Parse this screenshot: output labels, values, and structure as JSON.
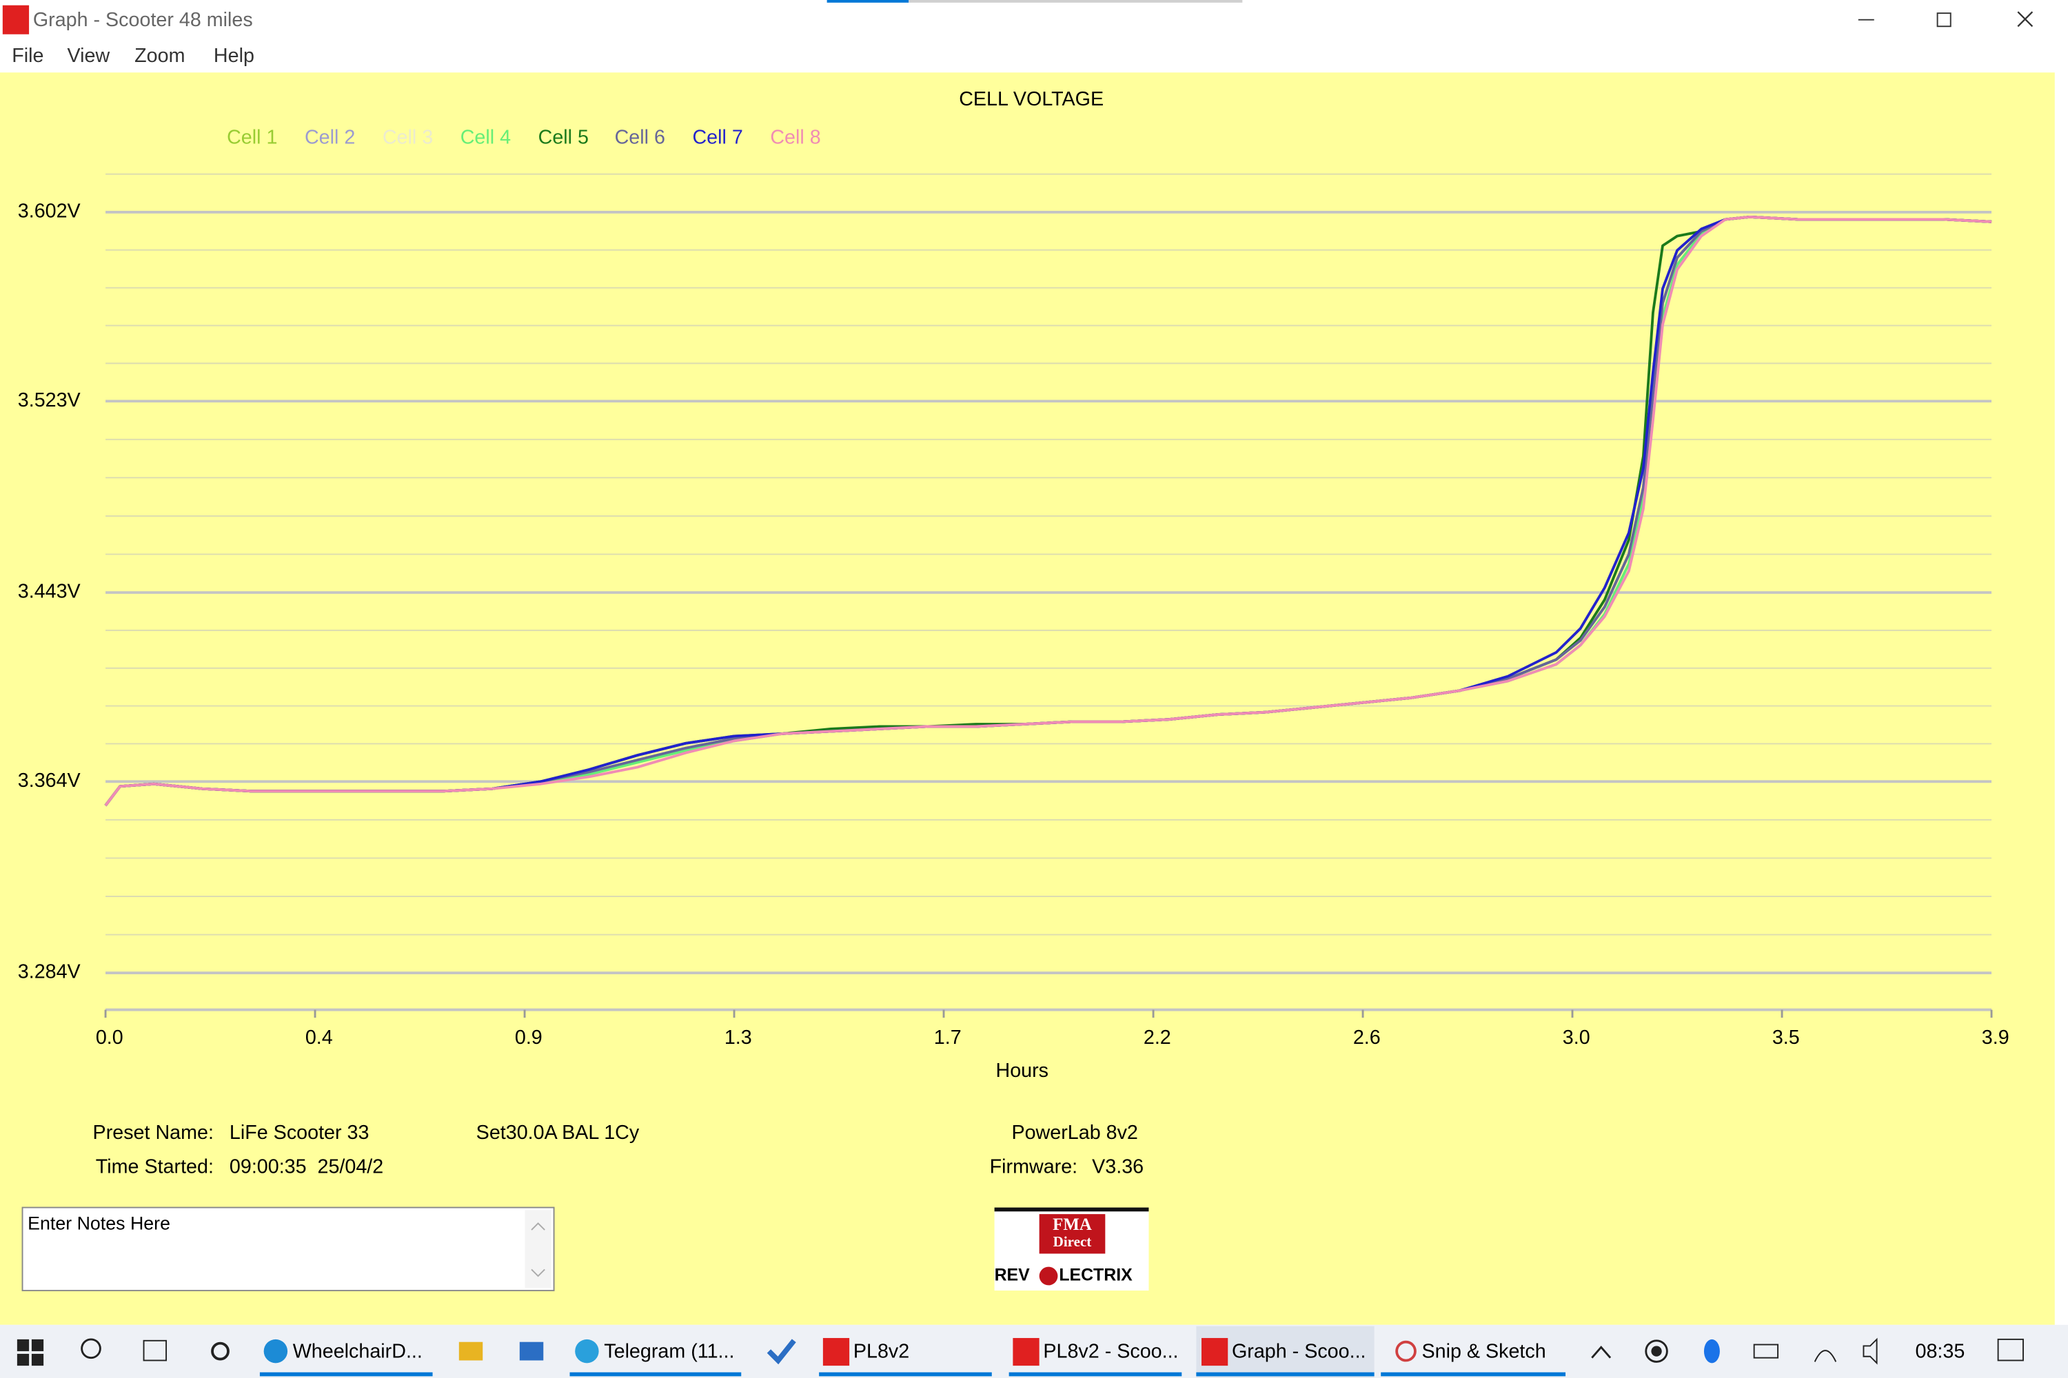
{
  "window": {
    "title": "Graph - Scooter 48 miles",
    "menu": [
      "File",
      "View",
      "Zoom",
      "Help"
    ]
  },
  "chart_data": {
    "type": "line",
    "title": "CELL VOLTAGE",
    "x_label": "Hours",
    "x": [
      0,
      0.03,
      0.1,
      0.2,
      0.3,
      0.4,
      0.5,
      0.6,
      0.7,
      0.8,
      0.9,
      1.0,
      1.1,
      1.2,
      1.3,
      1.4,
      1.5,
      1.6,
      1.7,
      1.8,
      1.9,
      2.0,
      2.1,
      2.2,
      2.3,
      2.4,
      2.5,
      2.6,
      2.7,
      2.8,
      2.9,
      3.0,
      3.05,
      3.1,
      3.15,
      3.18,
      3.2,
      3.22,
      3.25,
      3.3,
      3.35,
      3.4,
      3.5,
      3.6,
      3.7,
      3.8,
      3.9
    ],
    "series": [
      {
        "name": "Cell 1",
        "color": "#99cc33",
        "values": [
          3.354,
          3.362,
          3.363,
          3.361,
          3.36,
          3.36,
          3.36,
          3.36,
          3.36,
          3.361,
          3.364,
          3.368,
          3.373,
          3.378,
          3.382,
          3.384,
          3.385,
          3.386,
          3.387,
          3.387,
          3.388,
          3.389,
          3.389,
          3.39,
          3.392,
          3.393,
          3.395,
          3.397,
          3.399,
          3.402,
          3.407,
          3.415,
          3.423,
          3.437,
          3.459,
          3.487,
          3.526,
          3.564,
          3.583,
          3.594,
          3.599,
          3.6,
          3.599,
          3.599,
          3.599,
          3.599,
          3.598
        ]
      },
      {
        "name": "Cell 2",
        "color": "#9b9bd0",
        "values": [
          3.354,
          3.362,
          3.363,
          3.361,
          3.36,
          3.36,
          3.36,
          3.36,
          3.36,
          3.361,
          3.364,
          3.368,
          3.373,
          3.378,
          3.382,
          3.384,
          3.385,
          3.386,
          3.387,
          3.387,
          3.388,
          3.389,
          3.389,
          3.39,
          3.392,
          3.393,
          3.395,
          3.397,
          3.399,
          3.402,
          3.407,
          3.415,
          3.423,
          3.437,
          3.459,
          3.487,
          3.526,
          3.564,
          3.583,
          3.594,
          3.599,
          3.6,
          3.599,
          3.599,
          3.599,
          3.599,
          3.598
        ]
      },
      {
        "name": "Cell 3",
        "color": "#ecebd0",
        "values": [
          3.354,
          3.362,
          3.363,
          3.361,
          3.36,
          3.36,
          3.36,
          3.36,
          3.36,
          3.361,
          3.364,
          3.368,
          3.373,
          3.378,
          3.382,
          3.384,
          3.385,
          3.386,
          3.387,
          3.387,
          3.388,
          3.389,
          3.389,
          3.39,
          3.392,
          3.393,
          3.395,
          3.397,
          3.399,
          3.402,
          3.407,
          3.415,
          3.423,
          3.437,
          3.459,
          3.487,
          3.526,
          3.564,
          3.583,
          3.594,
          3.599,
          3.6,
          3.599,
          3.599,
          3.599,
          3.599,
          3.598
        ]
      },
      {
        "name": "Cell 4",
        "color": "#66ee77",
        "values": [
          3.354,
          3.362,
          3.363,
          3.361,
          3.36,
          3.36,
          3.36,
          3.36,
          3.36,
          3.361,
          3.364,
          3.367,
          3.372,
          3.377,
          3.381,
          3.384,
          3.385,
          3.386,
          3.387,
          3.387,
          3.388,
          3.389,
          3.389,
          3.39,
          3.392,
          3.393,
          3.395,
          3.397,
          3.399,
          3.402,
          3.406,
          3.413,
          3.421,
          3.434,
          3.455,
          3.482,
          3.518,
          3.558,
          3.58,
          3.593,
          3.599,
          3.6,
          3.599,
          3.599,
          3.599,
          3.599,
          3.598
        ]
      },
      {
        "name": "Cell 5",
        "color": "#1b7a1b",
        "values": [
          3.354,
          3.362,
          3.363,
          3.361,
          3.36,
          3.36,
          3.36,
          3.36,
          3.36,
          3.361,
          3.364,
          3.369,
          3.375,
          3.38,
          3.383,
          3.384,
          3.386,
          3.387,
          3.387,
          3.388,
          3.388,
          3.389,
          3.389,
          3.39,
          3.392,
          3.393,
          3.395,
          3.397,
          3.399,
          3.402,
          3.407,
          3.415,
          3.424,
          3.44,
          3.465,
          3.5,
          3.56,
          3.588,
          3.592,
          3.594,
          3.599,
          3.6,
          3.599,
          3.599,
          3.599,
          3.599,
          3.598
        ]
      },
      {
        "name": "Cell 6",
        "color": "#666699",
        "values": [
          3.354,
          3.362,
          3.363,
          3.361,
          3.36,
          3.36,
          3.36,
          3.36,
          3.36,
          3.361,
          3.364,
          3.368,
          3.373,
          3.378,
          3.382,
          3.384,
          3.385,
          3.386,
          3.387,
          3.387,
          3.388,
          3.389,
          3.389,
          3.39,
          3.392,
          3.393,
          3.395,
          3.397,
          3.399,
          3.402,
          3.407,
          3.415,
          3.423,
          3.437,
          3.459,
          3.487,
          3.526,
          3.564,
          3.583,
          3.594,
          3.599,
          3.6,
          3.599,
          3.599,
          3.599,
          3.599,
          3.598
        ]
      },
      {
        "name": "Cell 7",
        "color": "#2222cc",
        "values": [
          3.354,
          3.362,
          3.363,
          3.361,
          3.36,
          3.36,
          3.36,
          3.36,
          3.36,
          3.361,
          3.364,
          3.369,
          3.375,
          3.38,
          3.383,
          3.384,
          3.385,
          3.386,
          3.387,
          3.387,
          3.388,
          3.389,
          3.389,
          3.39,
          3.392,
          3.393,
          3.395,
          3.397,
          3.399,
          3.402,
          3.408,
          3.418,
          3.428,
          3.445,
          3.468,
          3.495,
          3.535,
          3.57,
          3.586,
          3.595,
          3.599,
          3.6,
          3.599,
          3.599,
          3.599,
          3.599,
          3.598
        ]
      },
      {
        "name": "Cell 8",
        "color": "#f08cb4",
        "values": [
          3.354,
          3.362,
          3.363,
          3.361,
          3.36,
          3.36,
          3.36,
          3.36,
          3.36,
          3.361,
          3.363,
          3.366,
          3.37,
          3.376,
          3.381,
          3.384,
          3.385,
          3.386,
          3.387,
          3.387,
          3.388,
          3.389,
          3.389,
          3.39,
          3.392,
          3.393,
          3.395,
          3.397,
          3.399,
          3.402,
          3.406,
          3.413,
          3.421,
          3.433,
          3.452,
          3.478,
          3.515,
          3.555,
          3.578,
          3.592,
          3.599,
          3.6,
          3.599,
          3.599,
          3.599,
          3.599,
          3.598
        ]
      }
    ],
    "xlim": [
      0,
      3.9
    ],
    "xticks": [
      {
        "value": 0,
        "label": "0.0"
      },
      {
        "value": 0.4333,
        "label": "0.4"
      },
      {
        "value": 0.8667,
        "label": "0.9"
      },
      1.3,
      {
        "value": 1.7333,
        "label": "1.7"
      },
      {
        "value": 2.1667,
        "label": "2.2"
      },
      2.6,
      {
        "value": 3.0333,
        "label": "3.0"
      },
      {
        "value": 3.4667,
        "label": "3.5"
      },
      3.9
    ],
    "ylim": [
      3.2686,
      3.6185
    ],
    "yticks": [
      {
        "value": 3.284,
        "label": "3.284V"
      },
      {
        "value": 3.364,
        "label": "3.364V"
      },
      {
        "value": 3.443,
        "label": "3.443V"
      },
      {
        "value": 3.523,
        "label": "3.523V"
      },
      {
        "value": 3.602,
        "label": "3.602V"
      }
    ],
    "grid": true
  },
  "info": {
    "preset_label": "Preset Name:",
    "preset_value": "LiFe Scooter 33",
    "settings": "Set30.0A BAL 1Cy",
    "time_label": "Time Started:",
    "time_value": "09:00:35  25/04/2",
    "device": "PowerLab 8v2",
    "firmware_label": "Firmware:",
    "firmware_value": "V3.36"
  },
  "notes": "Enter Notes Here",
  "logo": {
    "brand": "FMA",
    "sub": "Direct",
    "left": "REV",
    "right": "LECTRIX"
  },
  "taskbar": {
    "items": [
      "WheelchairD...",
      "Telegram (11...",
      "PL8v2",
      "PL8v2 - Scoo...",
      "Graph - Scoo...",
      "Snip & Sketch"
    ],
    "clock": "08:35"
  }
}
